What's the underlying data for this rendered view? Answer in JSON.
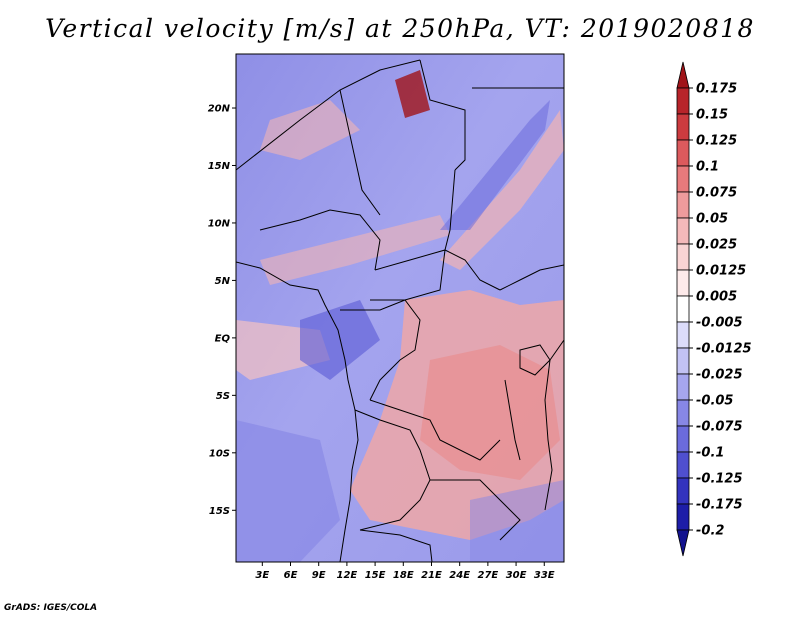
{
  "title": "Vertical velocity [m/s] at 250hPa, VT: 2019020818",
  "credit": "GrADS: IGES/COLA",
  "map": {
    "lat_ticks": [
      "20N",
      "15N",
      "10N",
      "5N",
      "EQ",
      "5S",
      "10S",
      "15S"
    ],
    "lon_ticks": [
      "3E",
      "6E",
      "9E",
      "12E",
      "15E",
      "18E",
      "21E",
      "24E",
      "27E",
      "30E",
      "33E"
    ],
    "lat_range": [
      -19.5,
      24.7
    ],
    "lon_range": [
      0.2,
      35.1
    ]
  },
  "colorbar": {
    "labels": [
      "0.175",
      "0.15",
      "0.125",
      "0.1",
      "0.075",
      "0.05",
      "0.025",
      "0.0125",
      "0.005",
      "-0.005",
      "-0.0125",
      "-0.025",
      "-0.05",
      "-0.075",
      "-0.1",
      "-0.125",
      "-0.175",
      "-0.2"
    ],
    "colors": [
      "#a01419",
      "#b8242a",
      "#cc3b3f",
      "#dc5a5d",
      "#e77a7c",
      "#ee9b9c",
      "#f4b9ba",
      "#f9d4d4",
      "#fdeaea",
      "#ffffff",
      "#dcdcfa",
      "#c2c2f4",
      "#a6a6ee",
      "#8787e6",
      "#6b6bdc",
      "#4f4fcf",
      "#3333be",
      "#1d1da8",
      "#12128e"
    ]
  }
}
